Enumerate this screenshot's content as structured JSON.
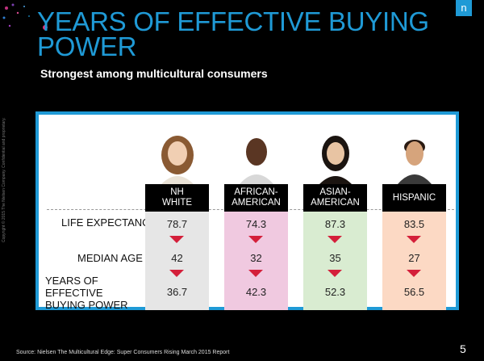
{
  "header": {
    "title": "YEARS OF EFFECTIVE BUYING POWER",
    "subtitle": "Strongest among multicultural consumers",
    "logo": "n"
  },
  "row_labels": {
    "life_expectancy": "LIFE EXPECTANCY",
    "median_age": "MEDIAN AGE",
    "buying_power": "YEARS OF EFFECTIVE BUYING POWER"
  },
  "groups": [
    {
      "label": "NH\nWHITE",
      "life_expectancy": "78.7",
      "median_age": "42",
      "buying_power": "36.7",
      "color": "#e6e6e6"
    },
    {
      "label": "AFRICAN-\nAMERICAN",
      "life_expectancy": "74.3",
      "median_age": "32",
      "buying_power": "42.3",
      "color": "#f0c9e0"
    },
    {
      "label": "ASIAN-\nAMERICAN",
      "life_expectancy": "87.3",
      "median_age": "35",
      "buying_power": "52.3",
      "color": "#d9ecd1"
    },
    {
      "label": "HISPANIC",
      "life_expectancy": "83.5",
      "median_age": "27",
      "buying_power": "56.5",
      "color": "#fcd9c4"
    }
  ],
  "footer": {
    "source": "Source: Nielsen The Multicultural Edge: Super Consumers Rising March 2015 Report",
    "page_number": "5",
    "copyright": "Copyright © 2015 The Nielsen Company. Confidential and proprietary."
  },
  "colors": {
    "accent": "#1f9ad6",
    "arrow": "#d41f3a"
  }
}
